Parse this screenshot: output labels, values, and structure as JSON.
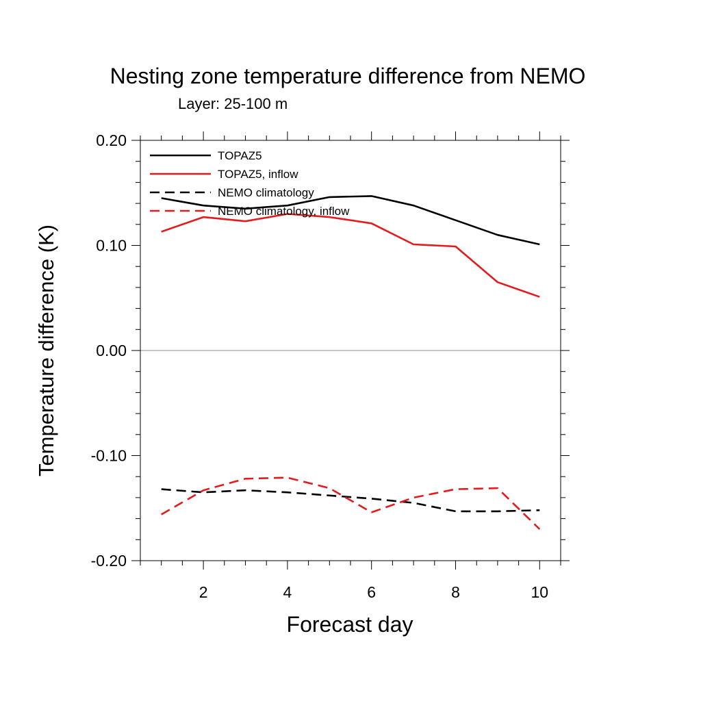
{
  "chart_data": {
    "type": "line",
    "title": "Nesting zone temperature difference from NEMO",
    "subtitle": "Layer: 25-100 m",
    "xlabel": "Forecast day",
    "ylabel": "Temperature difference (K)",
    "xlim": [
      0.5,
      10.5
    ],
    "ylim": [
      -0.2,
      0.2
    ],
    "x_ticks": [
      2,
      4,
      6,
      8,
      10
    ],
    "x_tick_labels": [
      "2",
      "4",
      "6",
      "8",
      "10"
    ],
    "y_ticks": [
      -0.2,
      -0.1,
      0.0,
      0.1,
      0.2
    ],
    "y_tick_labels": [
      "-0.20",
      "-0.10",
      "0.00",
      "0.10",
      "0.20"
    ],
    "grid": false,
    "zero_line": true,
    "legend_position": "top-left",
    "x": [
      1,
      2,
      3,
      4,
      5,
      6,
      7,
      8,
      9,
      10
    ],
    "series": [
      {
        "name": "TOPAZ5",
        "color": "#000000",
        "dash": "solid",
        "values": [
          0.145,
          0.138,
          0.135,
          0.138,
          0.146,
          0.147,
          0.138,
          0.124,
          0.11,
          0.101
        ]
      },
      {
        "name": "TOPAZ5, inflow",
        "color": "#e41a1c",
        "dash": "solid",
        "values": [
          0.113,
          0.127,
          0.123,
          0.13,
          0.127,
          0.121,
          0.101,
          0.099,
          0.065,
          0.051
        ]
      },
      {
        "name": "NEMO climatology",
        "color": "#000000",
        "dash": "dashed",
        "values": [
          -0.132,
          -0.135,
          -0.133,
          -0.135,
          -0.138,
          -0.141,
          -0.145,
          -0.153,
          -0.153,
          -0.152
        ]
      },
      {
        "name": "NEMO climatology, inflow",
        "color": "#e41a1c",
        "dash": "dashed",
        "values": [
          -0.156,
          -0.133,
          -0.122,
          -0.121,
          -0.131,
          -0.154,
          -0.14,
          -0.132,
          -0.131,
          -0.17
        ]
      }
    ]
  }
}
